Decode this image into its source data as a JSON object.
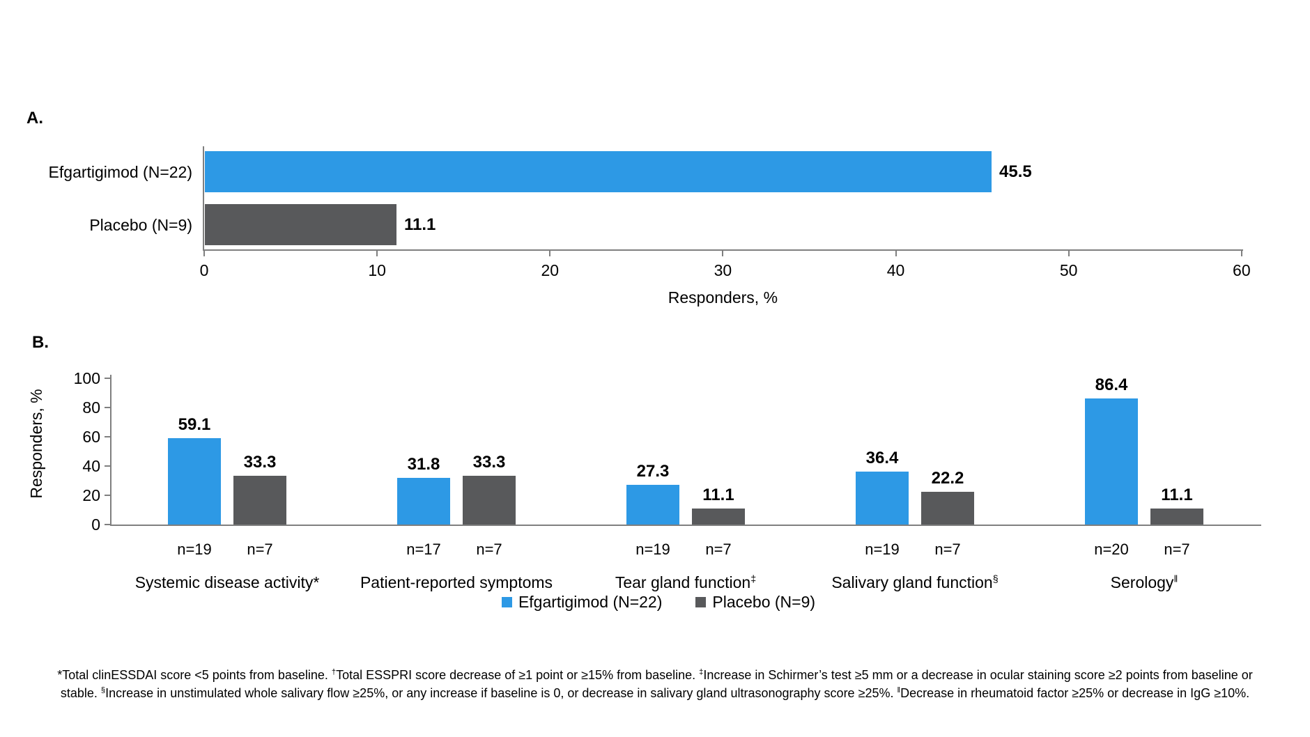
{
  "chart_data": [
    {
      "type": "bar",
      "orientation": "horizontal",
      "panel": "A.",
      "categories": [
        "Efgartigimod (N=22)",
        "Placebo (N=9)"
      ],
      "values": [
        45.5,
        11.1
      ],
      "bar_colors": [
        "#2D99E5",
        "#58595B"
      ],
      "xlabel": "Responders, %",
      "xlim": [
        0,
        60
      ],
      "xticks": [
        0,
        10,
        20,
        30,
        40,
        50,
        60
      ],
      "grid": false,
      "legend_position": "none"
    },
    {
      "type": "bar",
      "orientation": "vertical",
      "panel": "B.",
      "categories": [
        "Systemic disease activity*",
        "Patient-reported symptoms",
        "Tear gland function‡",
        "Salivary gland function§",
        "Serology‖"
      ],
      "category_render": [
        {
          "text": "Systemic disease activity*",
          "sup": ""
        },
        {
          "text": "Patient-reported symptoms",
          "sup": ""
        },
        {
          "text": "Tear gland function",
          "sup": "‡"
        },
        {
          "text": "Salivary gland function",
          "sup": "§"
        },
        {
          "text": "Serology",
          "sup": "‖"
        }
      ],
      "series": [
        {
          "name": "Efgartigimod (N=22)",
          "color": "#2D99E5",
          "values": [
            59.1,
            31.8,
            27.3,
            36.4,
            86.4
          ],
          "n": [
            "n=19",
            "n=17",
            "n=19",
            "n=19",
            "n=20"
          ]
        },
        {
          "name": "Placebo (N=9)",
          "color": "#58595B",
          "values": [
            33.3,
            33.3,
            11.1,
            22.2,
            11.1
          ],
          "n": [
            "n=7",
            "n=7",
            "n=7",
            "n=7",
            "n=7"
          ]
        }
      ],
      "ylabel": "Responders, %",
      "ylim": [
        0,
        100
      ],
      "yticks": [
        0,
        20,
        40,
        60,
        80,
        100
      ],
      "grid": false,
      "legend_position": "bottom"
    }
  ],
  "footnote": {
    "lines": [
      [
        {
          "t": "*Total clinESSDAI score <5 points from baseline. "
        },
        {
          "s": "†"
        },
        {
          "t": "Total ESSPRI score decrease of ≥1 point or ≥15% from baseline. "
        },
        {
          "s": "‡"
        },
        {
          "t": "Increase in Schirmer’s test ≥5 mm or a decrease in ocular staining score ≥2 points from baseline or"
        }
      ],
      [
        {
          "t": "stable. "
        },
        {
          "s": "§"
        },
        {
          "t": "Increase in unstimulated whole salivary flow ≥25%, or any increase if baseline is 0, or decrease in salivary gland ultrasonography score ≥25%. "
        },
        {
          "s": "‖"
        },
        {
          "t": "Decrease in rheumatoid factor ≥25% or decrease in IgG ≥10%."
        }
      ]
    ]
  },
  "colors": {
    "efgartigimod": "#2D99E5",
    "placebo": "#58595B",
    "axis": "#7F7F7F"
  }
}
